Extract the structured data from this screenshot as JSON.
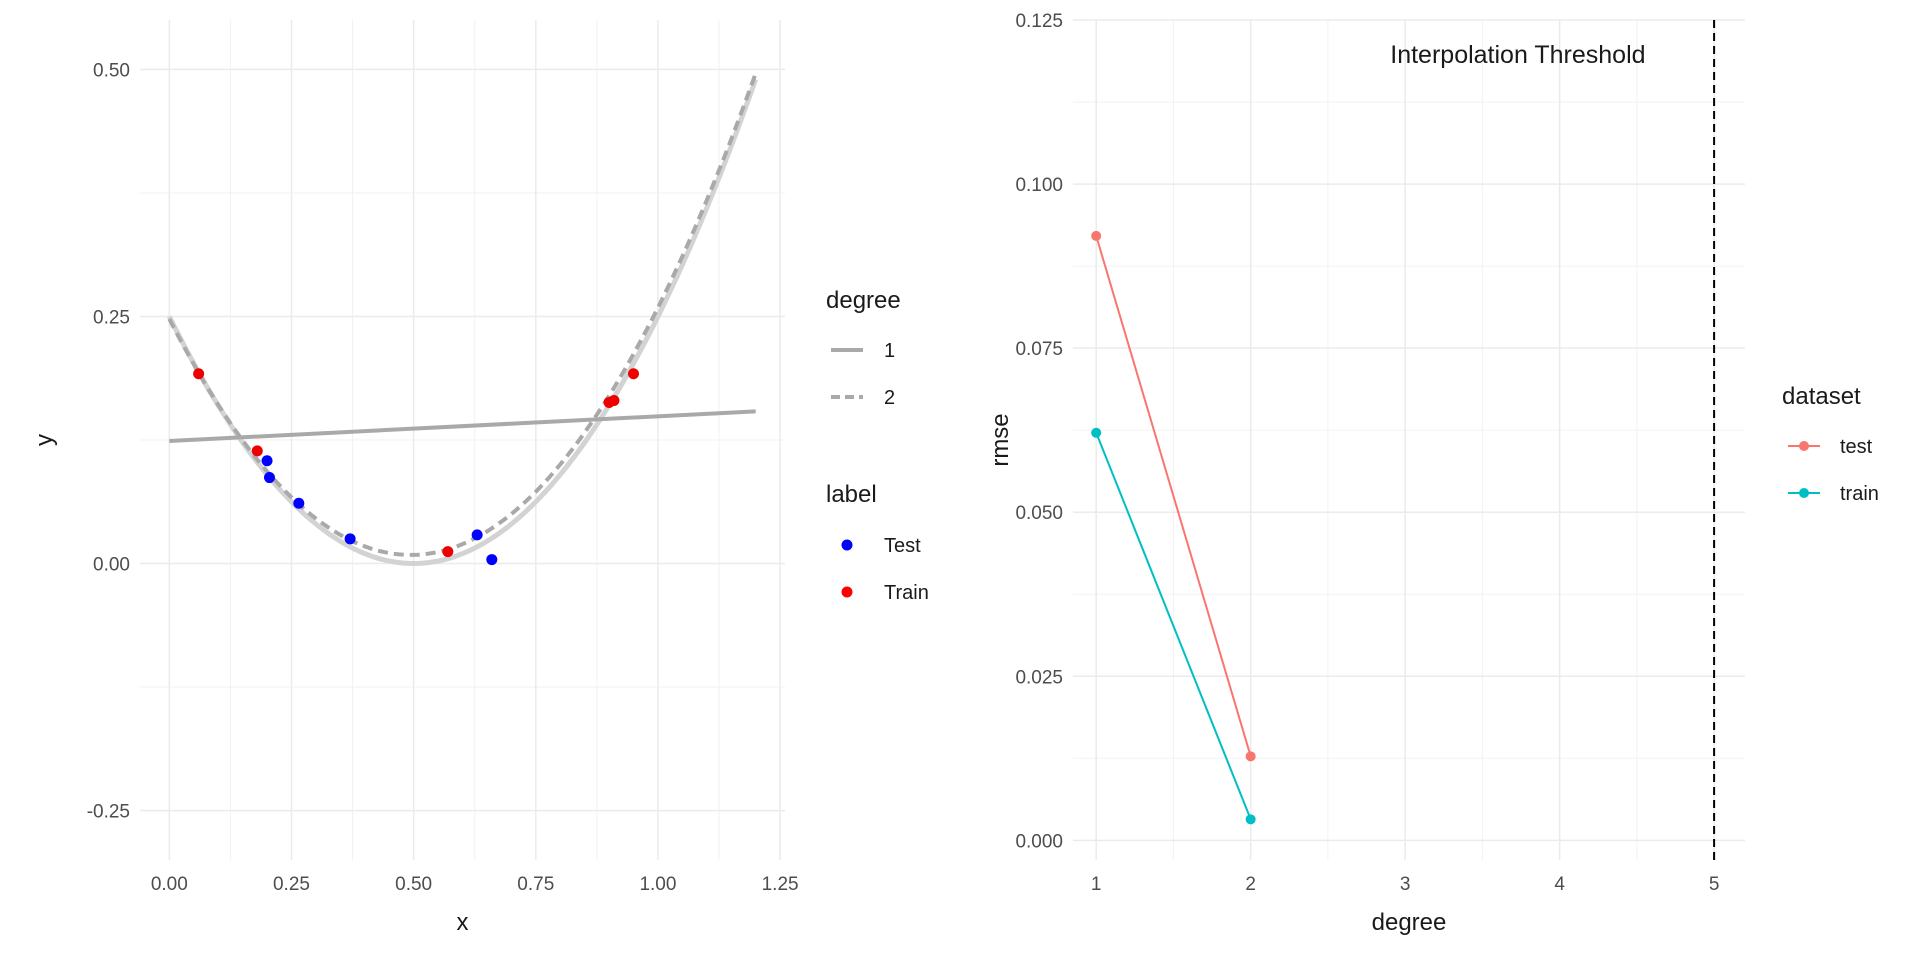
{
  "chart_data": [
    {
      "type": "scatter",
      "xlabel": "x",
      "ylabel": "y",
      "xlim": [
        -0.06,
        1.26
      ],
      "ylim": [
        -0.3,
        0.55
      ],
      "xticks": [
        "0.00",
        "0.25",
        "0.50",
        "0.75",
        "1.00",
        "1.25"
      ],
      "xtick_values": [
        0,
        0.25,
        0.5,
        0.75,
        1.0,
        1.25
      ],
      "yticks": [
        "-0.25",
        "0.00",
        "0.25",
        "0.50"
      ],
      "ytick_values": [
        -0.25,
        0,
        0.25,
        0.5
      ],
      "grid": true,
      "points": [
        {
          "x": 0.06,
          "y": 0.192,
          "label": "Train"
        },
        {
          "x": 0.18,
          "y": 0.114,
          "label": "Train"
        },
        {
          "x": 0.57,
          "y": 0.012,
          "label": "Train"
        },
        {
          "x": 0.9,
          "y": 0.163,
          "label": "Train"
        },
        {
          "x": 0.91,
          "y": 0.165,
          "label": "Train"
        },
        {
          "x": 0.95,
          "y": 0.192,
          "label": "Train"
        },
        {
          "x": 0.2,
          "y": 0.104,
          "label": "Test"
        },
        {
          "x": 0.205,
          "y": 0.087,
          "label": "Test"
        },
        {
          "x": 0.265,
          "y": 0.061,
          "label": "Test"
        },
        {
          "x": 0.37,
          "y": 0.025,
          "label": "Test"
        },
        {
          "x": 0.63,
          "y": 0.029,
          "label": "Test"
        },
        {
          "x": 0.66,
          "y": 0.004,
          "label": "Test"
        }
      ],
      "true_curve": {
        "formula": "(x - 0.5)^2",
        "x_range": [
          0,
          1.2
        ]
      },
      "fits": [
        {
          "degree": "1",
          "intercept": 0.124,
          "slope": 0.025
        },
        {
          "degree": "2",
          "coefficients": [
            0.2475,
            -0.9666,
            0.9781
          ]
        }
      ],
      "legends": [
        {
          "title": "degree",
          "entries": [
            {
              "name": "1",
              "style": "solid"
            },
            {
              "name": "2",
              "style": "dashed"
            }
          ]
        },
        {
          "title": "label",
          "entries": [
            {
              "name": "Test",
              "color": "#0000ff"
            },
            {
              "name": "Train",
              "color": "#ff0000"
            }
          ]
        }
      ],
      "colors": {
        "Test": "#0000ff",
        "Train": "#ee0000",
        "true_curve": "#d3d3d3",
        "fit": "#a9a9a9"
      }
    },
    {
      "type": "line",
      "xlabel": "degree",
      "ylabel": "rmse",
      "xlim": [
        0.85,
        5.2
      ],
      "ylim": [
        -0.003,
        0.125
      ],
      "xticks": [
        "1",
        "2",
        "3",
        "4",
        "5"
      ],
      "xtick_values": [
        1,
        2,
        3,
        4,
        5
      ],
      "yticks": [
        "0.000",
        "0.025",
        "0.050",
        "0.075",
        "0.100",
        "0.125"
      ],
      "ytick_values": [
        0,
        0.025,
        0.05,
        0.075,
        0.1,
        0.125
      ],
      "grid": true,
      "series": [
        {
          "name": "test",
          "x": [
            1,
            2
          ],
          "values": [
            0.0921,
            0.0128
          ],
          "color": "#f8766d"
        },
        {
          "name": "train",
          "x": [
            1,
            2
          ],
          "values": [
            0.0621,
            0.0032
          ],
          "color": "#00bfc4"
        }
      ],
      "vline": {
        "x": 5,
        "style": "dashed"
      },
      "annotation": {
        "text": "Interpolation Threshold",
        "x": 3.73,
        "y": 0.1198
      },
      "legend": {
        "title": "dataset",
        "entries": [
          "test",
          "train"
        ]
      }
    }
  ]
}
